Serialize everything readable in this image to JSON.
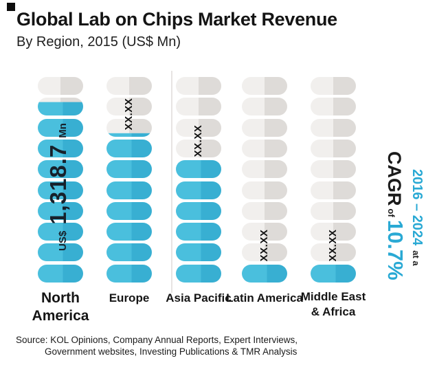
{
  "header": {
    "title": "Global Lab on Chips Market Revenue",
    "subtitle": "By Region, 2015 (US$ Mn)"
  },
  "chart_data": {
    "type": "bar",
    "subtype": "pictorial-capsule-stack",
    "title": "Global Lab on Chips Market Revenue",
    "subtitle": "By Region, 2015 (US$ Mn)",
    "unit": "US$ Mn",
    "year": "2015",
    "pills_total_per_column": 10,
    "categories": [
      "North America",
      "Europe",
      "Asia Pacific",
      "Latin America",
      "Middle East & Africa"
    ],
    "series": [
      {
        "region": "North America",
        "label_lines": [
          "North",
          "America"
        ],
        "value": 1318.7,
        "value_display": "US$ 1,318.7 Mn",
        "value_parts": {
          "prefix": "US$",
          "number": "1,318.7",
          "suffix": "Mn"
        },
        "pills_filled": 8.75
      },
      {
        "region": "Europe",
        "label_lines": [
          "Europe"
        ],
        "value": null,
        "masked_label": "XX.XX",
        "pills_filled": 7.2
      },
      {
        "region": "Asia Pacific",
        "label_lines": [
          "Asia Pacific"
        ],
        "value": null,
        "masked_label": "XX.XX",
        "pills_filled": 6
      },
      {
        "region": "Latin America",
        "label_lines": [
          "Latin America"
        ],
        "value": null,
        "masked_label": "XX.XX",
        "pills_filled": 1
      },
      {
        "region": "Middle East & Africa",
        "label_lines": [
          "Middle East",
          "& Africa"
        ],
        "value": null,
        "masked_label": "XX.XX",
        "pills_filled": 1
      }
    ],
    "cagr": {
      "period": "2016 – 2024",
      "at_a": "at a",
      "label": "CAGR",
      "of": "of",
      "value": "10.7%"
    },
    "colors": {
      "pill_blue_left": "#4abfdd",
      "pill_blue_right": "#38afd2",
      "pill_gray_left": "#f1efed",
      "pill_gray_right": "#dedbd8",
      "accent_blue_text": "#29a9d4",
      "text_dark": "#1a1a1a"
    },
    "legend_position": "none",
    "grid": false
  },
  "source": {
    "line1": "Source: KOL Opinions, Company Annual Reports, Expert Interviews,",
    "line2": "Government websites, Investing Publications & TMR Analysis"
  }
}
